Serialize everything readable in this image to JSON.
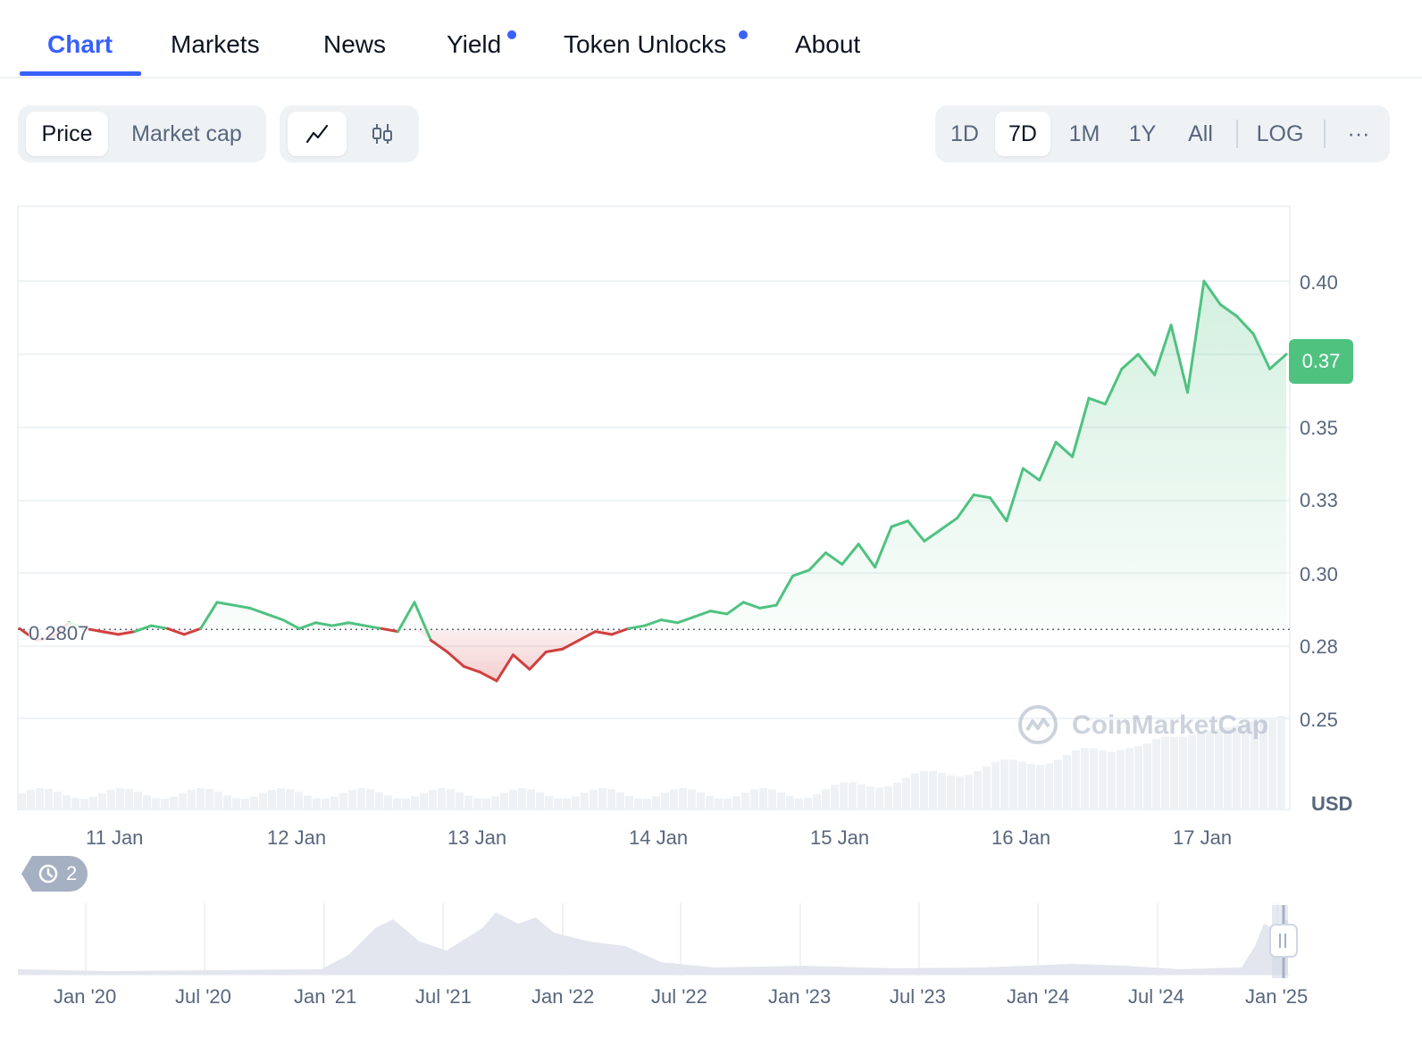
{
  "tabs": [
    {
      "label": "Chart",
      "active": true
    },
    {
      "label": "Markets"
    },
    {
      "label": "News"
    },
    {
      "label": "Yield",
      "dot": true
    },
    {
      "label": "Token Unlocks",
      "dot": true
    },
    {
      "label": "About"
    }
  ],
  "toolbar": {
    "metric_toggle": [
      "Price",
      "Market cap"
    ],
    "metric_selected": "Price",
    "chart_type_icons": [
      "line-chart-icon",
      "candlestick-icon"
    ],
    "ranges": [
      "1D",
      "7D",
      "1M",
      "1Y",
      "All"
    ],
    "range_selected": "7D",
    "log_label": "LOG",
    "more_label": "···"
  },
  "colors": {
    "accent": "#3861fb",
    "up": "#4fc280",
    "down": "#d13f3f",
    "muted": "#58667e"
  },
  "chart": {
    "reference_label": "0.2807",
    "current_price_label": "0.37",
    "currency_label": "USD",
    "history_count": "2",
    "watermark": "CoinMarketCap"
  },
  "chart_data": {
    "type": "area",
    "reference_value": 0.2807,
    "current_value": 0.37,
    "yticks": [
      "0.40",
      "0.35",
      "0.33",
      "0.30",
      "0.28",
      "0.25"
    ],
    "xticks": [
      "11 Jan",
      "12 Jan",
      "13 Jan",
      "14 Jan",
      "15 Jan",
      "16 Jan",
      "17 Jan"
    ],
    "series": [
      {
        "values": [
          0.281,
          0.277,
          0.278,
          0.283,
          0.281,
          0.28,
          0.279,
          0.28,
          0.282,
          0.281,
          0.279,
          0.281,
          0.29,
          0.289,
          0.288,
          0.286,
          0.284,
          0.281,
          0.283,
          0.282,
          0.283,
          0.282,
          0.281,
          0.28,
          0.29,
          0.277,
          0.273,
          0.268,
          0.266,
          0.263,
          0.272,
          0.267,
          0.273,
          0.274,
          0.277,
          0.28,
          0.279,
          0.281,
          0.282,
          0.284,
          0.283,
          0.285,
          0.287,
          0.286,
          0.29,
          0.288,
          0.289,
          0.299,
          0.301,
          0.307,
          0.303,
          0.31,
          0.302,
          0.316,
          0.318,
          0.311,
          0.315,
          0.319,
          0.327,
          0.326,
          0.318,
          0.336,
          0.332,
          0.345,
          0.34,
          0.36,
          0.358,
          0.37,
          0.375,
          0.368,
          0.385,
          0.362,
          0.4,
          0.392,
          0.388,
          0.382,
          0.37,
          0.375
        ]
      }
    ],
    "navigator": {
      "xticks": [
        "Jan '20",
        "Jul '20",
        "Jan '21",
        "Jul '21",
        "Jan '22",
        "Jul '22",
        "Jan '23",
        "Jul '23",
        "Jan '24",
        "Jul '24",
        "Jan '25"
      ]
    }
  }
}
